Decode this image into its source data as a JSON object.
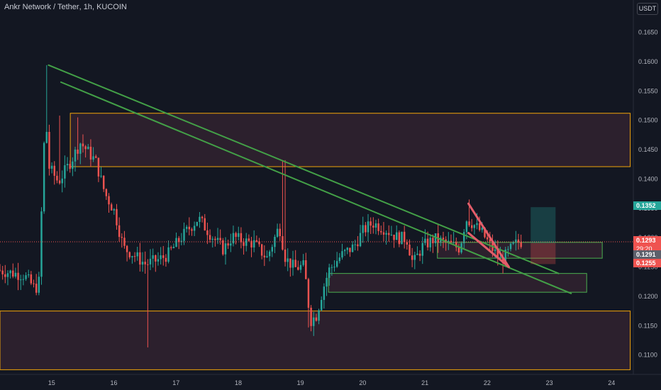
{
  "header": {
    "symbol": "Ankr Network / Tether",
    "interval": "1h",
    "exchange": "KUCOIN",
    "currency": "USDT"
  },
  "price_tags": {
    "target": "0.1352",
    "current": "0.1293",
    "countdown": "29:20",
    "entry": "0.1291",
    "stop": "0.1255"
  },
  "colors": {
    "background": "#131722",
    "up": "#26a69a",
    "down": "#ef5350",
    "zone_border_orange": "#f0a30a",
    "zone_border_green": "#4caf50",
    "zone_fill": "rgba(120,60,80,0.25)",
    "trendline": "#43a047",
    "wedge": "#e35d6a",
    "target_fill": "rgba(38,166,154,0.28)",
    "stop_fill": "rgba(239,83,80,0.28)"
  },
  "chart_data": {
    "type": "candlestick",
    "x_tick_labels": [
      "15",
      "16",
      "17",
      "18",
      "19",
      "20",
      "21",
      "22",
      "23",
      "24"
    ],
    "y_tick_labels": [
      "0.1100",
      "0.1150",
      "0.1200",
      "0.1250",
      "0.1300",
      "0.1350",
      "0.1400",
      "0.1450",
      "0.1500",
      "0.1550",
      "0.1600",
      "0.1650"
    ],
    "ylim": [
      0.1067,
      0.1705
    ],
    "xlim": [
      14.17,
      24.35
    ],
    "grid": false,
    "key_prices": {
      "spike_high": 0.1594,
      "low": 0.1147,
      "wick_low": 0.1113,
      "last": 0.1293
    },
    "zones": [
      {
        "x": [
          15.3,
          24.3
        ],
        "y": [
          0.1421,
          0.1512
        ],
        "border": "orange"
      },
      {
        "x": [
          14.17,
          24.3
        ],
        "y": [
          0.1075,
          0.1175
        ],
        "border": "orange"
      },
      {
        "x": [
          21.2,
          23.85
        ],
        "y": [
          0.1265,
          0.1292
        ],
        "border": "green"
      },
      {
        "x": [
          19.45,
          23.6
        ],
        "y": [
          0.1207,
          0.1239
        ],
        "border": "green"
      }
    ],
    "trendlines": [
      {
        "from": [
          14.95,
          0.1594
        ],
        "to": [
          23.15,
          0.1239
        ],
        "color": "green"
      },
      {
        "from": [
          15.15,
          0.1565
        ],
        "to": [
          23.35,
          0.1205
        ],
        "color": "green"
      },
      {
        "from": [
          21.7,
          0.1358
        ],
        "to": [
          22.35,
          0.125
        ],
        "color": "red"
      },
      {
        "from": [
          21.7,
          0.1308
        ],
        "to": [
          22.35,
          0.125
        ],
        "color": "red"
      }
    ],
    "position": {
      "x": [
        22.7,
        23.1
      ],
      "entry": 0.1291,
      "target": 0.1352,
      "stop": 0.1255
    },
    "anchors": [
      [
        14.17,
        0.1245
      ],
      [
        14.4,
        0.124
      ],
      [
        14.6,
        0.1236
      ],
      [
        14.78,
        0.1212
      ],
      [
        14.85,
        0.1228
      ],
      [
        14.9,
        0.143
      ],
      [
        14.95,
        0.15
      ],
      [
        15.0,
        0.142
      ],
      [
        15.15,
        0.1395
      ],
      [
        15.35,
        0.143
      ],
      [
        15.5,
        0.1462
      ],
      [
        15.6,
        0.145
      ],
      [
        15.75,
        0.143
      ],
      [
        15.9,
        0.1375
      ],
      [
        16.05,
        0.1345
      ],
      [
        16.2,
        0.1282
      ],
      [
        16.35,
        0.1272
      ],
      [
        16.55,
        0.1255
      ],
      [
        16.75,
        0.1262
      ],
      [
        16.9,
        0.127
      ],
      [
        17.05,
        0.129
      ],
      [
        17.2,
        0.131
      ],
      [
        17.4,
        0.1333
      ],
      [
        17.6,
        0.1305
      ],
      [
        17.8,
        0.128
      ],
      [
        17.95,
        0.1302
      ],
      [
        18.1,
        0.1295
      ],
      [
        18.3,
        0.129
      ],
      [
        18.5,
        0.1265
      ],
      [
        18.6,
        0.1292
      ],
      [
        18.7,
        0.132
      ],
      [
        18.8,
        0.1265
      ],
      [
        18.95,
        0.1248
      ],
      [
        19.1,
        0.1252
      ],
      [
        19.2,
        0.1158
      ],
      [
        19.3,
        0.1168
      ],
      [
        19.4,
        0.1212
      ],
      [
        19.5,
        0.1245
      ],
      [
        19.7,
        0.127
      ],
      [
        19.9,
        0.1285
      ],
      [
        20.05,
        0.1312
      ],
      [
        20.2,
        0.1325
      ],
      [
        20.4,
        0.1315
      ],
      [
        20.6,
        0.13
      ],
      [
        20.75,
        0.1298
      ],
      [
        20.85,
        0.1255
      ],
      [
        21.0,
        0.1285
      ],
      [
        21.2,
        0.1298
      ],
      [
        21.4,
        0.129
      ],
      [
        21.6,
        0.1282
      ],
      [
        21.7,
        0.1332
      ],
      [
        21.8,
        0.1325
      ],
      [
        21.95,
        0.131
      ],
      [
        22.1,
        0.1285
      ],
      [
        22.25,
        0.1262
      ],
      [
        22.35,
        0.127
      ],
      [
        22.45,
        0.1285
      ],
      [
        22.55,
        0.1293
      ]
    ],
    "spikes": [
      [
        14.92,
        0.1594
      ],
      [
        15.12,
        0.1508
      ],
      [
        15.42,
        0.1505
      ],
      [
        18.73,
        0.1432
      ],
      [
        19.13,
        0.1147
      ],
      [
        16.55,
        0.1113
      ],
      [
        21.72,
        0.1365
      ]
    ]
  }
}
